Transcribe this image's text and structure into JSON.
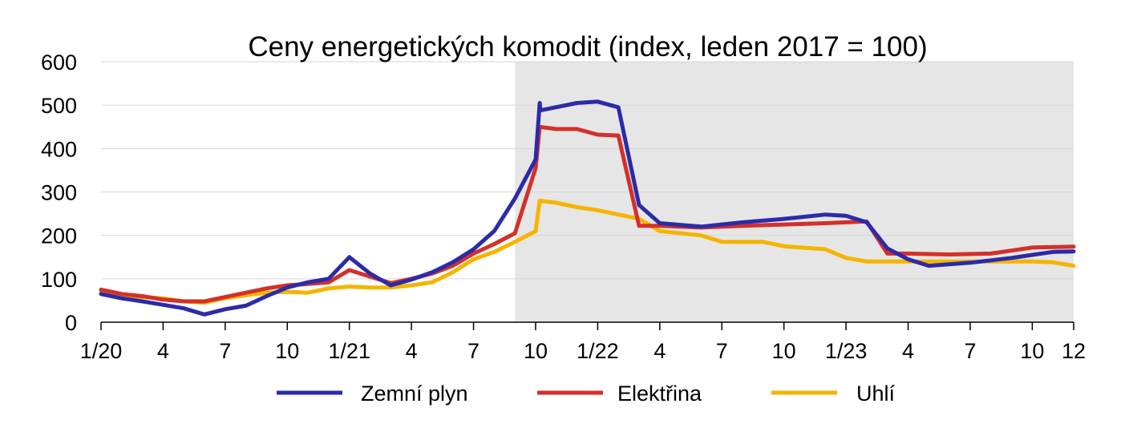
{
  "chart_data": {
    "type": "line",
    "title": "Ceny energetických komodit (index, leden 2017 = 100)",
    "xlabel": "",
    "ylabel": "",
    "ylim": [
      0,
      600
    ],
    "y_ticks": [
      "0",
      "100",
      "200",
      "300",
      "400",
      "500",
      "600"
    ],
    "x_ticks": [
      {
        "label": "1/20",
        "date": "2020-01"
      },
      {
        "label": "4",
        "date": "2020-04"
      },
      {
        "label": "7",
        "date": "2020-07"
      },
      {
        "label": "10",
        "date": "2020-10"
      },
      {
        "label": "1/21",
        "date": "2021-01"
      },
      {
        "label": "4",
        "date": "2021-04"
      },
      {
        "label": "7",
        "date": "2021-07"
      },
      {
        "label": "10",
        "date": "2021-10"
      },
      {
        "label": "1/22",
        "date": "2022-01"
      },
      {
        "label": "4",
        "date": "2022-04"
      },
      {
        "label": "7",
        "date": "2022-07"
      },
      {
        "label": "10",
        "date": "2022-10"
      },
      {
        "label": "1/23",
        "date": "2023-01"
      },
      {
        "label": "4",
        "date": "2023-04"
      },
      {
        "label": "7",
        "date": "2023-07"
      },
      {
        "label": "10",
        "date": "2023-10"
      },
      {
        "label": "12",
        "date": "2023-12"
      }
    ],
    "x_range": [
      "2020-01",
      "2023-12"
    ],
    "shaded_region": {
      "from": "2021-09",
      "to": "2023-12",
      "color": "#e6e6e6"
    },
    "grid": "horizontal",
    "legend_position": "bottom",
    "series": [
      {
        "name": "Zemní plyn",
        "color": "#2b2ba8",
        "points": [
          [
            "2020-01",
            65
          ],
          [
            "2020-02",
            55
          ],
          [
            "2020-03",
            48
          ],
          [
            "2020-04",
            40
          ],
          [
            "2020-05",
            32
          ],
          [
            "2020-06",
            18
          ],
          [
            "2020-07",
            30
          ],
          [
            "2020-08",
            38
          ],
          [
            "2020-09",
            60
          ],
          [
            "2020-10",
            80
          ],
          [
            "2020-11",
            92
          ],
          [
            "2020-12",
            100
          ],
          [
            "2021-01",
            150
          ],
          [
            "2021-02",
            112
          ],
          [
            "2021-03",
            85
          ],
          [
            "2021-04",
            98
          ],
          [
            "2021-05",
            115
          ],
          [
            "2021-06",
            138
          ],
          [
            "2021-07",
            168
          ],
          [
            "2021-08",
            210
          ],
          [
            "2021-09",
            285
          ],
          [
            "2021-10",
            375
          ],
          [
            "2021-10-07",
            505
          ],
          [
            "2021-10-08",
            488
          ],
          [
            "2021-12",
            505
          ],
          [
            "2022-01",
            508
          ],
          [
            "2022-02",
            495
          ],
          [
            "2022-03",
            270
          ],
          [
            "2022-04",
            228
          ],
          [
            "2022-06",
            220
          ],
          [
            "2022-08",
            230
          ],
          [
            "2022-10",
            238
          ],
          [
            "2022-12",
            248
          ],
          [
            "2023-01",
            245
          ],
          [
            "2023-02",
            230
          ],
          [
            "2023-03",
            170
          ],
          [
            "2023-04",
            145
          ],
          [
            "2023-05",
            130
          ],
          [
            "2023-07",
            137
          ],
          [
            "2023-09",
            148
          ],
          [
            "2023-11",
            162
          ],
          [
            "2023-12",
            163
          ]
        ]
      },
      {
        "name": "Elektřina",
        "color": "#d3302a",
        "points": [
          [
            "2020-01",
            75
          ],
          [
            "2020-02",
            65
          ],
          [
            "2020-03",
            60
          ],
          [
            "2020-04",
            52
          ],
          [
            "2020-05",
            48
          ],
          [
            "2020-06",
            48
          ],
          [
            "2020-07",
            58
          ],
          [
            "2020-08",
            68
          ],
          [
            "2020-09",
            78
          ],
          [
            "2020-10",
            85
          ],
          [
            "2020-11",
            88
          ],
          [
            "2020-12",
            92
          ],
          [
            "2021-01",
            120
          ],
          [
            "2021-02",
            105
          ],
          [
            "2021-03",
            90
          ],
          [
            "2021-04",
            100
          ],
          [
            "2021-05",
            112
          ],
          [
            "2021-06",
            130
          ],
          [
            "2021-07",
            158
          ],
          [
            "2021-08",
            180
          ],
          [
            "2021-09",
            205
          ],
          [
            "2021-10",
            355
          ],
          [
            "2021-10-07",
            450
          ],
          [
            "2021-11",
            445
          ],
          [
            "2021-12",
            445
          ],
          [
            "2022-01",
            432
          ],
          [
            "2022-02",
            430
          ],
          [
            "2022-03",
            222
          ],
          [
            "2022-04",
            222
          ],
          [
            "2022-06",
            218
          ],
          [
            "2022-08",
            222
          ],
          [
            "2022-10",
            225
          ],
          [
            "2022-12",
            228
          ],
          [
            "2023-01",
            230
          ],
          [
            "2023-02",
            232
          ],
          [
            "2023-03",
            158
          ],
          [
            "2023-04",
            158
          ],
          [
            "2023-06",
            156
          ],
          [
            "2023-08",
            158
          ],
          [
            "2023-10",
            172
          ],
          [
            "2023-12",
            174
          ]
        ]
      },
      {
        "name": "Uhlí",
        "color": "#f5b400",
        "points": [
          [
            "2020-01",
            70
          ],
          [
            "2020-02",
            62
          ],
          [
            "2020-03",
            58
          ],
          [
            "2020-04",
            55
          ],
          [
            "2020-05",
            48
          ],
          [
            "2020-06",
            45
          ],
          [
            "2020-07",
            55
          ],
          [
            "2020-08",
            62
          ],
          [
            "2020-09",
            68
          ],
          [
            "2020-10",
            70
          ],
          [
            "2020-11",
            68
          ],
          [
            "2020-12",
            78
          ],
          [
            "2021-01",
            82
          ],
          [
            "2021-02",
            80
          ],
          [
            "2021-03",
            80
          ],
          [
            "2021-04",
            85
          ],
          [
            "2021-05",
            92
          ],
          [
            "2021-06",
            115
          ],
          [
            "2021-07",
            145
          ],
          [
            "2021-08",
            162
          ],
          [
            "2021-09",
            185
          ],
          [
            "2021-10",
            210
          ],
          [
            "2021-10-07",
            280
          ],
          [
            "2021-11",
            275
          ],
          [
            "2021-12",
            265
          ],
          [
            "2022-01",
            258
          ],
          [
            "2022-02",
            248
          ],
          [
            "2022-03",
            238
          ],
          [
            "2022-04",
            210
          ],
          [
            "2022-06",
            200
          ],
          [
            "2022-07",
            185
          ],
          [
            "2022-09",
            185
          ],
          [
            "2022-10",
            175
          ],
          [
            "2022-12",
            168
          ],
          [
            "2023-01",
            148
          ],
          [
            "2023-02",
            140
          ],
          [
            "2023-04",
            140
          ],
          [
            "2023-06",
            140
          ],
          [
            "2023-08",
            140
          ],
          [
            "2023-10",
            140
          ],
          [
            "2023-11",
            138
          ],
          [
            "2023-12",
            130
          ]
        ]
      }
    ]
  }
}
